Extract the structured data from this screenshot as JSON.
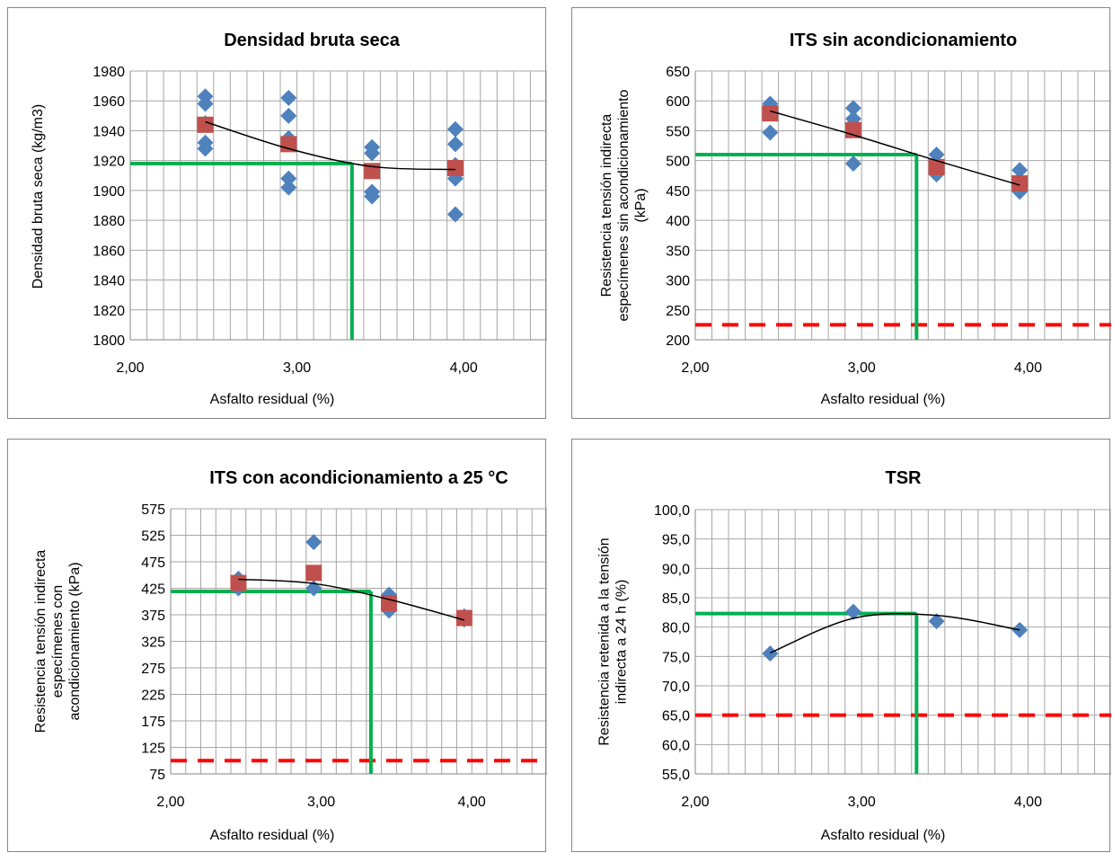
{
  "colors": {
    "measured": "#4F81BD",
    "average": "#C0504D",
    "optimum_line": "#00B050",
    "spec_limit": "#FF0000",
    "trend": "#000000",
    "grid": "#A6A6A6"
  },
  "chart_data": [
    {
      "type": "scatter",
      "title": "Densidad bruta seca",
      "xlabel": "Asfalto residual (%)",
      "ylabel": [
        "Densidad bruta seca (kg/m3)"
      ],
      "xlim": [
        2.0,
        4.5
      ],
      "ylim": [
        1800,
        1980
      ],
      "yticks": [
        1800,
        1820,
        1840,
        1860,
        1880,
        1900,
        1920,
        1940,
        1960,
        1980
      ],
      "yticklabels": [
        "1800",
        "1820",
        "1840",
        "1860",
        "1880",
        "1900",
        "1920",
        "1940",
        "1960",
        "1980"
      ],
      "xticks": [
        2.0,
        3.0,
        4.0
      ],
      "xticklabels": [
        "2,00",
        "3,00",
        "4,00"
      ],
      "grid": true,
      "series": [
        {
          "marker": "diamond",
          "x": [
            2.45,
            2.45,
            2.45,
            2.45,
            2.45,
            2.95,
            2.95,
            2.95,
            2.95,
            2.95,
            3.45,
            3.45,
            3.45,
            3.45,
            3.95,
            3.95,
            3.95,
            3.95,
            3.95
          ],
          "y": [
            1963,
            1958,
            1945,
            1932,
            1928,
            1962,
            1950,
            1935,
            1908,
            1902,
            1929,
            1925,
            1899,
            1896,
            1941,
            1931,
            1917,
            1908,
            1884
          ]
        },
        {
          "marker": "square",
          "x": [
            2.45,
            2.95,
            3.45,
            3.95
          ],
          "y": [
            1944,
            1931,
            1913,
            1915
          ]
        }
      ],
      "trend": {
        "x": [
          2.45,
          2.95,
          3.45,
          3.95
        ],
        "y": [
          1946,
          1928,
          1916,
          1914
        ]
      },
      "optimum": {
        "x": 3.33,
        "y": 1918
      }
    },
    {
      "type": "scatter",
      "title": "ITS sin acondicionamiento",
      "xlabel": "Asfalto residual (%)",
      "ylabel": [
        "Resistencia tensión indirecta",
        "especímenes sin acondicionamiento",
        "(kPa)"
      ],
      "xlim": [
        2.0,
        4.5
      ],
      "ylim": [
        200,
        650
      ],
      "yticks": [
        200,
        250,
        300,
        350,
        400,
        450,
        500,
        550,
        600,
        650
      ],
      "yticklabels": [
        "200",
        "250",
        "300",
        "350",
        "400",
        "450",
        "500",
        "550",
        "600",
        "650"
      ],
      "xticks": [
        2.0,
        3.0,
        4.0
      ],
      "xticklabels": [
        "2,00",
        "3,00",
        "4,00"
      ],
      "grid": true,
      "series": [
        {
          "marker": "diamond",
          "x": [
            2.45,
            2.45,
            2.95,
            2.95,
            2.95,
            3.45,
            3.45,
            3.45,
            3.95,
            3.95,
            3.95
          ],
          "y": [
            595,
            547,
            588,
            570,
            495,
            510,
            490,
            477,
            484,
            460,
            448
          ]
        },
        {
          "marker": "square",
          "x": [
            2.45,
            2.95,
            3.45,
            3.95
          ],
          "y": [
            579,
            551,
            489,
            462
          ]
        }
      ],
      "trend": {
        "x": [
          2.45,
          2.95,
          3.45,
          3.95
        ],
        "y": [
          583,
          543,
          500,
          459
        ]
      },
      "optimum": {
        "x": 3.33,
        "y": 510
      },
      "limit": 225
    },
    {
      "type": "scatter",
      "title": "ITS con acondicionamiento a 25 °C",
      "xlabel": "Asfalto residual (%)",
      "ylabel": [
        "Resistencia tensión indirecta",
        "especímenes con",
        "acondicionamiento (kPa)"
      ],
      "xlim": [
        2.0,
        4.5
      ],
      "ylim": [
        75,
        575
      ],
      "yticks": [
        75,
        125,
        175,
        225,
        275,
        325,
        375,
        425,
        475,
        525,
        575
      ],
      "yticklabels": [
        "75",
        "125",
        "175",
        "225",
        "275",
        "325",
        "375",
        "425",
        "475",
        "525",
        "575"
      ],
      "xticks": [
        2.0,
        3.0,
        4.0
      ],
      "xticklabels": [
        "2,00",
        "3,00",
        "4,00"
      ],
      "grid": true,
      "series": [
        {
          "marker": "diamond",
          "x": [
            2.45,
            2.45,
            2.95,
            2.95,
            3.45,
            3.45,
            3.95,
            3.95
          ],
          "y": [
            443,
            425,
            512,
            425,
            413,
            383,
            372,
            366
          ]
        },
        {
          "marker": "square",
          "x": [
            2.45,
            2.95,
            3.45,
            3.95
          ],
          "y": [
            435,
            454,
            397,
            369
          ]
        }
      ],
      "trend": {
        "x": [
          2.45,
          2.95,
          3.45,
          3.95
        ],
        "y": [
          442,
          434,
          404,
          365
        ]
      },
      "optimum": {
        "x": 3.33,
        "y": 419
      },
      "limit": 100
    },
    {
      "type": "scatter",
      "title": "TSR",
      "xlabel": "Asfalto residual (%)",
      "ylabel": [
        "Resistencia retenida a la tensión",
        "indirecta a 24 h (%)"
      ],
      "xlim": [
        2.0,
        4.5
      ],
      "ylim": [
        55,
        100
      ],
      "yticks": [
        55,
        60,
        65,
        70,
        75,
        80,
        85,
        90,
        95,
        100
      ],
      "yticklabels": [
        "55,0",
        "60,0",
        "65,0",
        "70,0",
        "75,0",
        "80,0",
        "85,0",
        "90,0",
        "95,0",
        "100,0"
      ],
      "xticks": [
        2.0,
        3.0,
        4.0
      ],
      "xticklabels": [
        "2,00",
        "3,00",
        "4,00"
      ],
      "grid": true,
      "series": [
        {
          "marker": "diamond",
          "x": [
            2.45,
            2.95,
            3.45,
            3.95
          ],
          "y": [
            75.5,
            82.6,
            81.0,
            79.5
          ]
        }
      ],
      "trend": {
        "x": [
          2.45,
          2.95,
          3.45,
          3.95
        ],
        "y": [
          75.6,
          81.5,
          82.0,
          79.5
        ]
      },
      "optimum": {
        "x": 3.33,
        "y": 82.3
      },
      "limit": 65
    }
  ]
}
